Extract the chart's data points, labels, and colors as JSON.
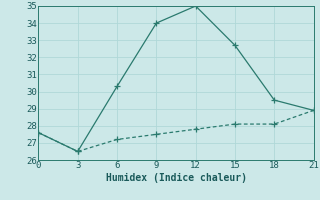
{
  "line1_x": [
    0,
    3,
    6,
    9,
    12,
    15,
    18,
    21
  ],
  "line1_y": [
    27.6,
    26.5,
    30.3,
    34.0,
    35.0,
    32.7,
    29.5,
    28.9
  ],
  "line2_x": [
    0,
    3,
    6,
    9,
    12,
    15,
    18,
    21
  ],
  "line2_y": [
    27.6,
    26.5,
    27.2,
    27.5,
    27.8,
    28.1,
    28.1,
    28.9
  ],
  "line_color": "#2a7a6e",
  "bg_color": "#cce8e8",
  "grid_color": "#b0d8d8",
  "xlabel": "Humidex (Indice chaleur)",
  "xlim": [
    0,
    21
  ],
  "ylim": [
    26,
    35
  ],
  "xticks": [
    0,
    3,
    6,
    9,
    12,
    15,
    18,
    21
  ],
  "yticks": [
    26,
    27,
    28,
    29,
    30,
    31,
    32,
    33,
    34,
    35
  ],
  "font_color": "#1a5a5a",
  "xlabel_fontsize": 7,
  "tick_fontsize": 6.5
}
